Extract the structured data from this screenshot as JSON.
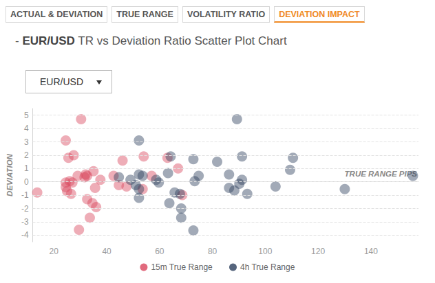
{
  "tabs": [
    {
      "label": "ACTUAL & DEVIATION",
      "active": false
    },
    {
      "label": "TRUE RANGE",
      "active": false
    },
    {
      "label": "VOLATILITY RATIO",
      "active": false
    },
    {
      "label": "DEVIATION IMPACT",
      "active": true
    }
  ],
  "heading": {
    "prefix": "-",
    "pair": "EUR/USD",
    "text": "TR vs Deviation Ratio Scatter Plot Chart"
  },
  "dropdown": "EUR/USD",
  "chart_data": {
    "type": "scatter",
    "x_label": "TRUE RANGE PIPS",
    "y_label": "DEVIATION",
    "xlim": [
      12,
      158
    ],
    "xticks": [
      20,
      40,
      60,
      80,
      100,
      120,
      140
    ],
    "ylim": [
      -4.5,
      5.5
    ],
    "yticks": [
      -4,
      -3,
      -2,
      -1,
      0,
      1,
      2,
      3,
      4,
      5
    ],
    "grid": true,
    "legend": "bottom",
    "marker": "circle",
    "series": [
      {
        "name": "15m True Range",
        "color": "#d9455c",
        "x": [
          30.3,
          24.5,
          25.5,
          27.5,
          24.5,
          24.5,
          25,
          26,
          27,
          26.5,
          29,
          31.6,
          32,
          32.6,
          35,
          37.6,
          35.6,
          32.6,
          34.6,
          36,
          33.6,
          29.5,
          42.6,
          44.6,
          46,
          47.5,
          54,
          57,
          63,
          67,
          68.6,
          53.6,
          13.7
        ],
        "values": [
          4.7,
          3.1,
          1.8,
          2.0,
          -0.05,
          -0.4,
          -0.7,
          0.05,
          -0.05,
          -0.9,
          0.45,
          0.35,
          0.55,
          0.45,
          0.8,
          0.15,
          -0.45,
          -1.3,
          -1.6,
          -1.9,
          -2.7,
          -3.6,
          0.45,
          -0.25,
          1.6,
          -0.35,
          1.9,
          0.45,
          1.8,
          1.0,
          -1.0,
          -0.55,
          -0.8
        ]
      },
      {
        "name": "4h True Range",
        "color": "#2c3e5c",
        "x": [
          52.2,
          52.2,
          53.6,
          51,
          52.2,
          52.2,
          44.6,
          49,
          58.7,
          59.7,
          64.2,
          63.2,
          63.7,
          65.7,
          67.7,
          68.2,
          68.2,
          72.8,
          72.8,
          73.3,
          74.8,
          81.8,
          86.3,
          86.3,
          88.3,
          89.3,
          90.2,
          91.2,
          91.2,
          93.2,
          103.9,
          109.4,
          110.5,
          130.1,
          155.9
        ],
        "values": [
          3.1,
          0.55,
          0.45,
          -0.25,
          -0.55,
          -1.2,
          0.35,
          0.15,
          0.15,
          -0.05,
          1.9,
          0.65,
          -1.6,
          -0.8,
          -0.9,
          -2.0,
          -2.7,
          -3.65,
          1.7,
          0.05,
          0.45,
          1.5,
          0.55,
          -0.45,
          -0.65,
          4.7,
          -0.15,
          1.9,
          0.15,
          -0.9,
          -0.35,
          0.9,
          1.8,
          -0.55,
          0.45
        ]
      }
    ]
  }
}
